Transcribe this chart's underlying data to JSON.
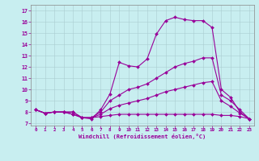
{
  "title": "",
  "xlabel": "Windchill (Refroidissement éolien,°C)",
  "background_color": "#c8eef0",
  "line_color": "#990099",
  "xlim": [
    -0.5,
    23.5
  ],
  "ylim": [
    6.8,
    17.5
  ],
  "xticks": [
    0,
    1,
    2,
    3,
    4,
    5,
    6,
    7,
    8,
    9,
    10,
    11,
    12,
    13,
    14,
    15,
    16,
    17,
    18,
    19,
    20,
    21,
    22,
    23
  ],
  "yticks": [
    7,
    8,
    9,
    10,
    11,
    12,
    13,
    14,
    15,
    16,
    17
  ],
  "lines": [
    {
      "x": [
        0,
        1,
        2,
        3,
        4,
        5,
        6,
        7,
        8,
        9,
        10,
        11,
        12,
        13,
        14,
        15,
        16,
        17,
        18,
        19,
        20,
        21,
        22,
        23
      ],
      "y": [
        8.2,
        7.9,
        8.0,
        8.0,
        8.0,
        7.5,
        7.4,
        8.2,
        9.6,
        12.4,
        12.1,
        12.0,
        12.7,
        14.9,
        16.1,
        16.4,
        16.2,
        16.1,
        16.1,
        15.5,
        10.0,
        9.3,
        8.0,
        7.4
      ]
    },
    {
      "x": [
        0,
        1,
        2,
        3,
        4,
        5,
        6,
        7,
        8,
        9,
        10,
        11,
        12,
        13,
        14,
        15,
        16,
        17,
        18,
        19,
        20,
        21,
        22,
        23
      ],
      "y": [
        8.2,
        7.9,
        8.0,
        8.0,
        8.0,
        7.5,
        7.5,
        8.0,
        9.0,
        9.5,
        10.0,
        10.2,
        10.5,
        11.0,
        11.5,
        12.0,
        12.3,
        12.5,
        12.8,
        12.8,
        9.5,
        9.0,
        8.2,
        7.4
      ]
    },
    {
      "x": [
        0,
        1,
        2,
        3,
        4,
        5,
        6,
        7,
        8,
        9,
        10,
        11,
        12,
        13,
        14,
        15,
        16,
        17,
        18,
        19,
        20,
        21,
        22,
        23
      ],
      "y": [
        8.2,
        7.9,
        8.0,
        8.0,
        7.8,
        7.5,
        7.5,
        7.8,
        8.3,
        8.6,
        8.8,
        9.0,
        9.2,
        9.5,
        9.8,
        10.0,
        10.2,
        10.4,
        10.6,
        10.7,
        9.0,
        8.5,
        7.9,
        7.4
      ]
    },
    {
      "x": [
        0,
        1,
        2,
        3,
        4,
        5,
        6,
        7,
        8,
        9,
        10,
        11,
        12,
        13,
        14,
        15,
        16,
        17,
        18,
        19,
        20,
        21,
        22,
        23
      ],
      "y": [
        8.2,
        7.9,
        8.0,
        8.0,
        7.8,
        7.5,
        7.5,
        7.6,
        7.7,
        7.8,
        7.8,
        7.8,
        7.8,
        7.8,
        7.8,
        7.8,
        7.8,
        7.8,
        7.8,
        7.8,
        7.7,
        7.7,
        7.6,
        7.4
      ]
    }
  ]
}
